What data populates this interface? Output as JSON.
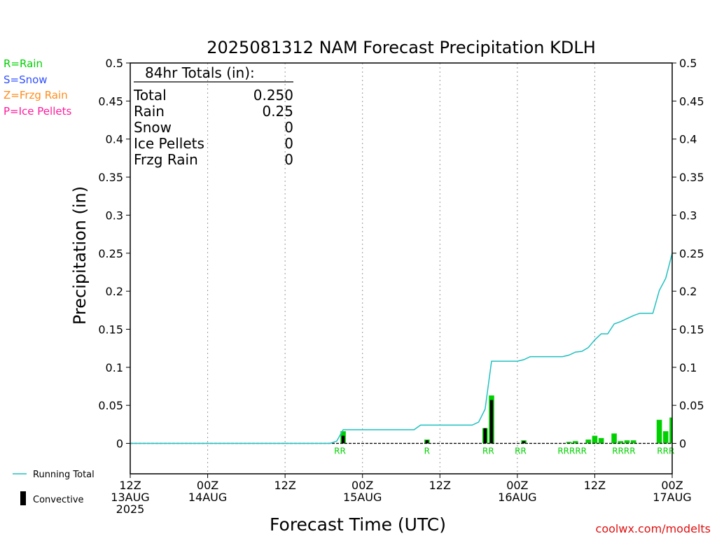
{
  "chart_data": {
    "type": "bar",
    "title": "2025081312 NAM Forecast Precipitation KDLH",
    "xlabel": "Forecast Time (UTC)",
    "ylabel": "Precipitation (in)",
    "ylim": [
      -0.04,
      0.5
    ],
    "xlim": [
      0,
      84
    ],
    "y_ticks": [
      "0",
      "0.05",
      "0.1",
      "0.15",
      "0.2",
      "0.25",
      "0.3",
      "0.35",
      "0.4",
      "0.45",
      "0.5"
    ],
    "y_tick_values": [
      0,
      0.05,
      0.1,
      0.15,
      0.2,
      0.25,
      0.3,
      0.35,
      0.4,
      0.45,
      0.5
    ],
    "x_ticks": [
      {
        "hour": 0,
        "line1": "12Z",
        "line2": "13AUG",
        "line3": "2025"
      },
      {
        "hour": 12,
        "line1": "00Z",
        "line2": "14AUG",
        "line3": ""
      },
      {
        "hour": 24,
        "line1": "12Z",
        "line2": "",
        "line3": ""
      },
      {
        "hour": 36,
        "line1": "00Z",
        "line2": "15AUG",
        "line3": ""
      },
      {
        "hour": 48,
        "line1": "12Z",
        "line2": "",
        "line3": ""
      },
      {
        "hour": 60,
        "line1": "00Z",
        "line2": "16AUG",
        "line3": ""
      },
      {
        "hour": 72,
        "line1": "12Z",
        "line2": "",
        "line3": ""
      },
      {
        "hour": 84,
        "line1": "00Z",
        "line2": "17AUG",
        "line3": ""
      }
    ],
    "grid_hours": [
      12,
      24,
      36,
      48,
      60,
      72
    ],
    "precip_bars": [
      {
        "hour": 33,
        "total": 0.016,
        "convective": 0.01,
        "type": "R"
      },
      {
        "hour": 46,
        "total": 0.005,
        "convective": 0.004,
        "type": "R"
      },
      {
        "hour": 55,
        "total": 0.02,
        "convective": 0.02,
        "type": "R"
      },
      {
        "hour": 56,
        "total": 0.063,
        "convective": 0.057,
        "type": "R"
      },
      {
        "hour": 61,
        "total": 0.004,
        "convective": 0.003,
        "type": "R"
      },
      {
        "hour": 68,
        "total": 0.002,
        "convective": 0,
        "type": "R"
      },
      {
        "hour": 69,
        "total": 0.003,
        "convective": 0,
        "type": "R"
      },
      {
        "hour": 71,
        "total": 0.005,
        "convective": 0,
        "type": "R"
      },
      {
        "hour": 72,
        "total": 0.01,
        "convective": 0,
        "type": "R"
      },
      {
        "hour": 73,
        "total": 0.007,
        "convective": 0,
        "type": "R"
      },
      {
        "hour": 75,
        "total": 0.013,
        "convective": 0,
        "type": "R"
      },
      {
        "hour": 76,
        "total": 0.003,
        "convective": 0,
        "type": "R"
      },
      {
        "hour": 77,
        "total": 0.004,
        "convective": 0,
        "type": "R"
      },
      {
        "hour": 78,
        "total": 0.004,
        "convective": 0,
        "type": "R"
      },
      {
        "hour": 82,
        "total": 0.031,
        "convective": 0,
        "type": "R"
      },
      {
        "hour": 83,
        "total": 0.016,
        "convective": 0,
        "type": "R"
      },
      {
        "hour": 84,
        "total": 0.034,
        "convective": 0,
        "type": "R"
      }
    ],
    "type_labels": [
      {
        "hour": 32.5,
        "text": "RR"
      },
      {
        "hour": 46,
        "text": "R"
      },
      {
        "hour": 55.5,
        "text": "RR"
      },
      {
        "hour": 60.5,
        "text": "RR"
      },
      {
        "hour": 68.5,
        "text": "RRRRR"
      },
      {
        "hour": 76.5,
        "text": "RRRR"
      },
      {
        "hour": 83,
        "text": "RRR"
      }
    ],
    "running_total": {
      "hours": [
        0,
        31,
        32,
        33,
        44,
        45,
        53,
        54,
        55,
        56,
        60,
        61,
        62,
        67,
        68,
        69,
        70,
        71,
        72,
        73,
        74,
        75,
        76,
        77,
        78,
        79,
        80,
        81,
        82,
        83,
        84
      ],
      "values": [
        0,
        0,
        0.003,
        0.018,
        0.018,
        0.024,
        0.024,
        0.028,
        0.045,
        0.108,
        0.108,
        0.11,
        0.114,
        0.114,
        0.116,
        0.12,
        0.121,
        0.126,
        0.136,
        0.144,
        0.144,
        0.157,
        0.16,
        0.164,
        0.168,
        0.171,
        0.171,
        0.171,
        0.201,
        0.217,
        0.25
      ]
    },
    "colors": {
      "rain": "#00d000",
      "snow": "#3050ff",
      "frzg_rain": "#ff8c1a",
      "ice_pellets": "#ff1a9c",
      "running_total": "#20c0c0",
      "convective": "#000000",
      "footer": "#e01010"
    }
  },
  "legend": {
    "rain": "R=Rain",
    "snow": "S=Snow",
    "frzg_rain": "Z=Frzg Rain",
    "ice_pellets": "P=Ice Pellets",
    "running_total": "Running Total",
    "convective": "Convective"
  },
  "totals_box": {
    "header": "84hr Totals (in):",
    "rows": [
      {
        "label": "Total",
        "value": "0.250"
      },
      {
        "label": "Rain",
        "value": "0.25"
      },
      {
        "label": "Snow",
        "value": "0"
      },
      {
        "label": "Ice Pellets",
        "value": "0"
      },
      {
        "label": "Frzg Rain",
        "value": "0"
      }
    ]
  },
  "footer": "coolwx.com/modelts"
}
